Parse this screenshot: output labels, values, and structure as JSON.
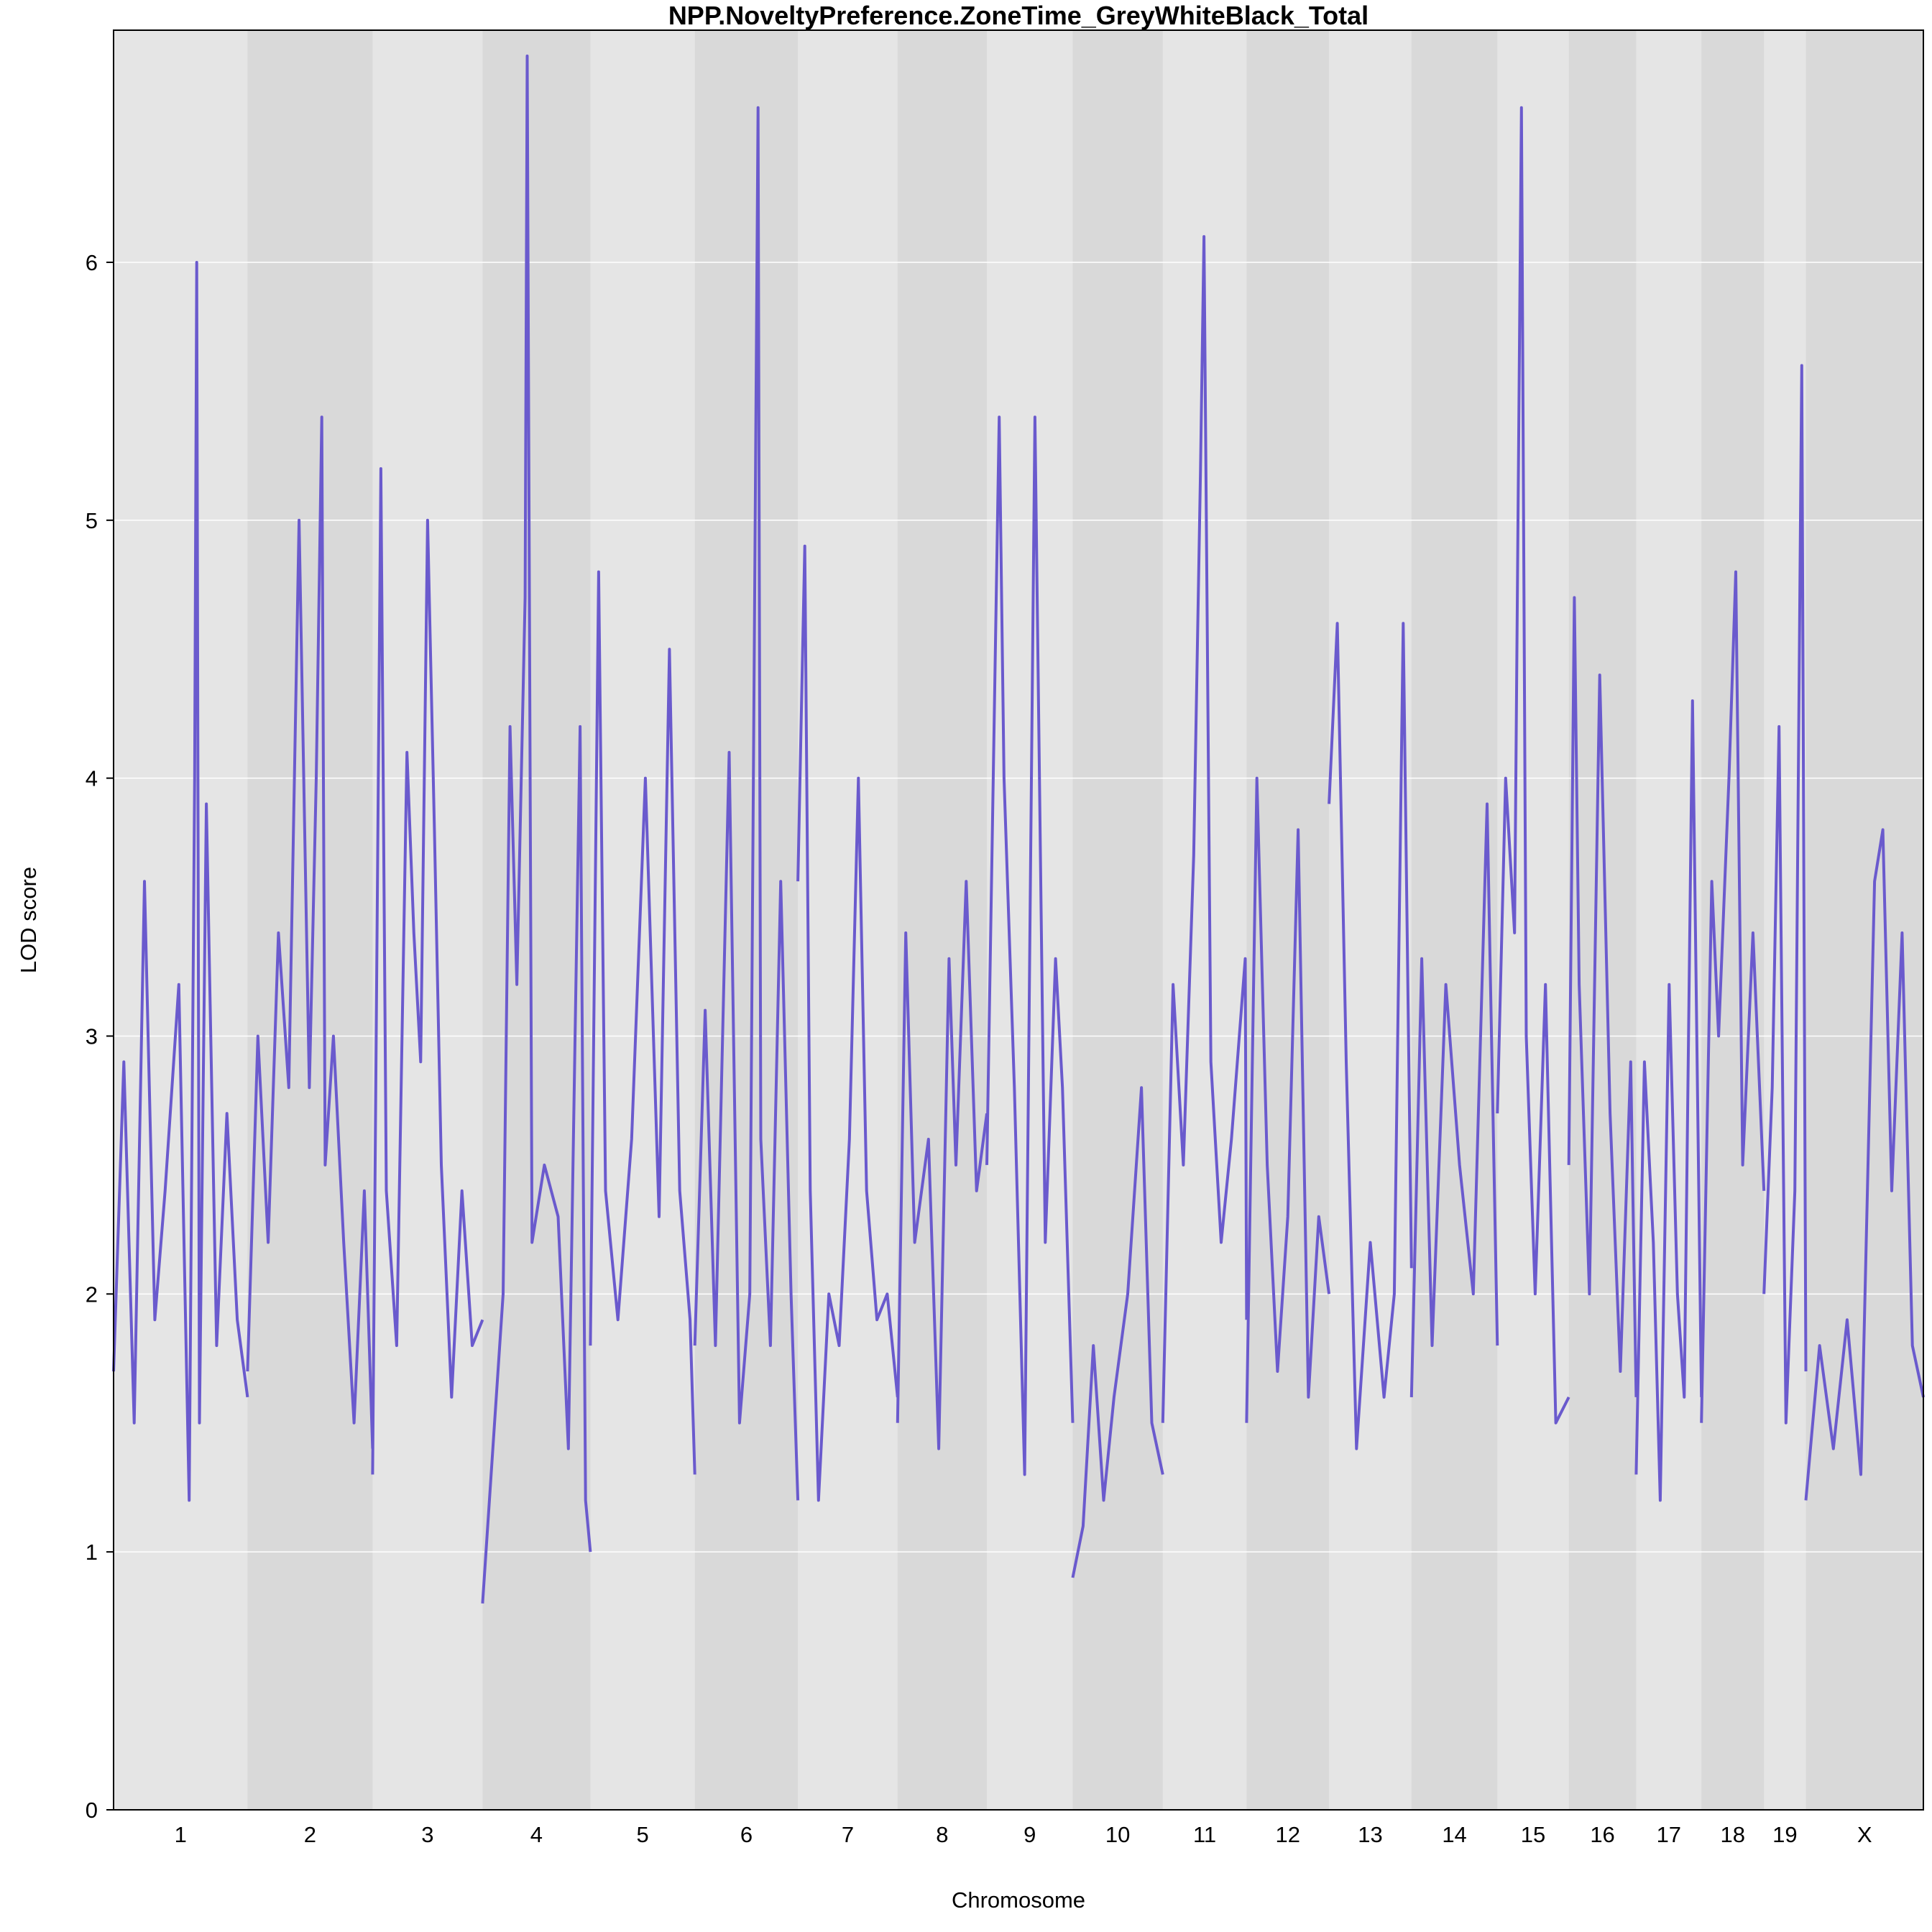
{
  "chart_data": {
    "type": "line",
    "title": "NPP.NoveltyPreference.ZoneTime_GreyWhiteBlack_Total",
    "xlabel": "Chromosome",
    "ylabel": "LOD score",
    "ylim": [
      0,
      6.9
    ],
    "yticks": [
      0,
      1,
      2,
      3,
      4,
      5,
      6
    ],
    "grid": true,
    "legend": "none",
    "line_color": "#6A5ACD",
    "band_colors": [
      "#E5E5E5",
      "#D9D9D9"
    ],
    "grid_color": "#FFFFFF",
    "chromosomes": [
      {
        "label": "1",
        "length": 195
      },
      {
        "label": "2",
        "length": 182
      },
      {
        "label": "3",
        "length": 160
      },
      {
        "label": "4",
        "length": 157
      },
      {
        "label": "5",
        "length": 152
      },
      {
        "label": "6",
        "length": 150
      },
      {
        "label": "7",
        "length": 145
      },
      {
        "label": "8",
        "length": 130
      },
      {
        "label": "9",
        "length": 125
      },
      {
        "label": "10",
        "length": 131
      },
      {
        "label": "11",
        "length": 122
      },
      {
        "label": "12",
        "length": 120
      },
      {
        "label": "13",
        "length": 120
      },
      {
        "label": "14",
        "length": 125
      },
      {
        "label": "15",
        "length": 104
      },
      {
        "label": "16",
        "length": 98
      },
      {
        "label": "17",
        "length": 95
      },
      {
        "label": "18",
        "length": 91
      },
      {
        "label": "19",
        "length": 61
      },
      {
        "label": "X",
        "length": 171
      }
    ],
    "series": [
      {
        "values": [
          [
            [
              0,
              1.7
            ],
            [
              15,
              2.9
            ],
            [
              30,
              1.5
            ],
            [
              45,
              3.6
            ],
            [
              60,
              1.9
            ],
            [
              75,
              2.4
            ],
            [
              95,
              3.2
            ],
            [
              110,
              1.2
            ],
            [
              118,
              4.0
            ],
            [
              121,
              6.0
            ],
            [
              125,
              1.5
            ],
            [
              135,
              3.9
            ],
            [
              150,
              1.8
            ],
            [
              165,
              2.7
            ],
            [
              180,
              1.9
            ],
            [
              195,
              1.6
            ]
          ],
          [
            [
              0,
              1.7
            ],
            [
              15,
              3.0
            ],
            [
              30,
              2.2
            ],
            [
              45,
              3.4
            ],
            [
              60,
              2.8
            ],
            [
              75,
              5.0
            ],
            [
              90,
              2.8
            ],
            [
              100,
              4.0
            ],
            [
              108,
              5.4
            ],
            [
              113,
              2.5
            ],
            [
              125,
              3.0
            ],
            [
              140,
              2.2
            ],
            [
              155,
              1.5
            ],
            [
              170,
              2.4
            ],
            [
              182,
              1.4
            ]
          ],
          [
            [
              0,
              1.3
            ],
            [
              12,
              5.2
            ],
            [
              20,
              2.4
            ],
            [
              35,
              1.8
            ],
            [
              50,
              4.1
            ],
            [
              60,
              3.4
            ],
            [
              70,
              2.9
            ],
            [
              80,
              5.0
            ],
            [
              90,
              3.8
            ],
            [
              100,
              2.5
            ],
            [
              115,
              1.6
            ],
            [
              130,
              2.4
            ],
            [
              145,
              1.8
            ],
            [
              160,
              1.9
            ]
          ],
          [
            [
              0,
              0.8
            ],
            [
              15,
              1.4
            ],
            [
              30,
              2.0
            ],
            [
              40,
              4.2
            ],
            [
              50,
              3.2
            ],
            [
              62,
              4.7
            ],
            [
              65,
              6.8
            ],
            [
              72,
              2.2
            ],
            [
              90,
              2.5
            ],
            [
              110,
              2.3
            ],
            [
              125,
              1.4
            ],
            [
              142,
              4.2
            ],
            [
              150,
              1.2
            ],
            [
              157,
              1.0
            ]
          ],
          [
            [
              0,
              1.8
            ],
            [
              12,
              4.8
            ],
            [
              22,
              2.4
            ],
            [
              40,
              1.9
            ],
            [
              60,
              2.6
            ],
            [
              80,
              4.0
            ],
            [
              100,
              2.3
            ],
            [
              115,
              4.5
            ],
            [
              130,
              2.4
            ],
            [
              145,
              1.9
            ],
            [
              152,
              1.3
            ]
          ],
          [
            [
              0,
              1.8
            ],
            [
              15,
              3.1
            ],
            [
              30,
              1.8
            ],
            [
              50,
              4.1
            ],
            [
              65,
              1.5
            ],
            [
              80,
              2.0
            ],
            [
              92,
              6.6
            ],
            [
              96,
              2.6
            ],
            [
              110,
              1.8
            ],
            [
              125,
              3.6
            ],
            [
              140,
              2.0
            ],
            [
              150,
              1.2
            ]
          ],
          [
            [
              0,
              3.6
            ],
            [
              10,
              4.9
            ],
            [
              18,
              2.4
            ],
            [
              30,
              1.2
            ],
            [
              45,
              2.0
            ],
            [
              60,
              1.8
            ],
            [
              75,
              2.6
            ],
            [
              88,
              4.0
            ],
            [
              100,
              2.4
            ],
            [
              115,
              1.9
            ],
            [
              130,
              2.0
            ],
            [
              145,
              1.6
            ]
          ],
          [
            [
              0,
              1.5
            ],
            [
              12,
              3.4
            ],
            [
              25,
              2.2
            ],
            [
              45,
              2.6
            ],
            [
              60,
              1.4
            ],
            [
              75,
              3.3
            ],
            [
              85,
              2.5
            ],
            [
              100,
              3.6
            ],
            [
              115,
              2.4
            ],
            [
              130,
              2.7
            ]
          ],
          [
            [
              0,
              2.5
            ],
            [
              18,
              5.4
            ],
            [
              25,
              4.0
            ],
            [
              40,
              2.8
            ],
            [
              55,
              1.3
            ],
            [
              70,
              5.4
            ],
            [
              85,
              2.2
            ],
            [
              100,
              3.3
            ],
            [
              110,
              2.8
            ],
            [
              125,
              1.5
            ]
          ],
          [
            [
              0,
              0.9
            ],
            [
              15,
              1.1
            ],
            [
              30,
              1.8
            ],
            [
              45,
              1.2
            ],
            [
              60,
              1.6
            ],
            [
              80,
              2.0
            ],
            [
              100,
              2.8
            ],
            [
              115,
              1.5
            ],
            [
              131,
              1.3
            ]
          ],
          [
            [
              0,
              1.5
            ],
            [
              15,
              3.2
            ],
            [
              30,
              2.5
            ],
            [
              45,
              3.7
            ],
            [
              55,
              5.2
            ],
            [
              60,
              6.1
            ],
            [
              70,
              2.9
            ],
            [
              85,
              2.2
            ],
            [
              100,
              2.6
            ],
            [
              120,
              3.3
            ],
            [
              122,
              1.9
            ]
          ],
          [
            [
              0,
              1.5
            ],
            [
              15,
              4.0
            ],
            [
              30,
              2.5
            ],
            [
              45,
              1.7
            ],
            [
              60,
              2.3
            ],
            [
              75,
              3.8
            ],
            [
              90,
              1.6
            ],
            [
              105,
              2.3
            ],
            [
              120,
              2.0
            ]
          ],
          [
            [
              0,
              3.9
            ],
            [
              12,
              4.6
            ],
            [
              25,
              2.9
            ],
            [
              40,
              1.4
            ],
            [
              60,
              2.2
            ],
            [
              80,
              1.6
            ],
            [
              95,
              2.0
            ],
            [
              108,
              4.6
            ],
            [
              120,
              2.1
            ]
          ],
          [
            [
              0,
              1.6
            ],
            [
              15,
              3.3
            ],
            [
              30,
              1.8
            ],
            [
              50,
              3.2
            ],
            [
              70,
              2.5
            ],
            [
              90,
              2.0
            ],
            [
              110,
              3.9
            ],
            [
              125,
              1.8
            ]
          ],
          [
            [
              0,
              2.7
            ],
            [
              12,
              4.0
            ],
            [
              25,
              3.4
            ],
            [
              35,
              6.6
            ],
            [
              42,
              3.0
            ],
            [
              55,
              2.0
            ],
            [
              70,
              3.2
            ],
            [
              85,
              1.5
            ],
            [
              104,
              1.6
            ]
          ],
          [
            [
              0,
              2.5
            ],
            [
              8,
              4.7
            ],
            [
              15,
              3.2
            ],
            [
              30,
              2.0
            ],
            [
              45,
              4.4
            ],
            [
              60,
              2.7
            ],
            [
              75,
              1.7
            ],
            [
              90,
              2.9
            ],
            [
              98,
              1.6
            ]
          ],
          [
            [
              0,
              1.3
            ],
            [
              12,
              2.9
            ],
            [
              25,
              2.2
            ],
            [
              35,
              1.2
            ],
            [
              48,
              3.2
            ],
            [
              60,
              2.0
            ],
            [
              70,
              1.6
            ],
            [
              82,
              4.3
            ],
            [
              95,
              1.6
            ]
          ],
          [
            [
              0,
              1.5
            ],
            [
              15,
              3.6
            ],
            [
              25,
              3.0
            ],
            [
              40,
              4.0
            ],
            [
              50,
              4.8
            ],
            [
              60,
              2.5
            ],
            [
              75,
              3.4
            ],
            [
              91,
              2.4
            ]
          ],
          [
            [
              0,
              2.0
            ],
            [
              12,
              2.8
            ],
            [
              22,
              4.2
            ],
            [
              32,
              1.5
            ],
            [
              45,
              2.4
            ],
            [
              55,
              5.6
            ],
            [
              61,
              1.7
            ]
          ],
          [
            [
              0,
              1.2
            ],
            [
              20,
              1.8
            ],
            [
              40,
              1.4
            ],
            [
              60,
              1.9
            ],
            [
              80,
              1.3
            ],
            [
              100,
              3.6
            ],
            [
              112,
              3.8
            ],
            [
              125,
              2.4
            ],
            [
              140,
              3.4
            ],
            [
              155,
              1.8
            ],
            [
              171,
              1.6
            ]
          ]
        ]
      }
    ]
  }
}
